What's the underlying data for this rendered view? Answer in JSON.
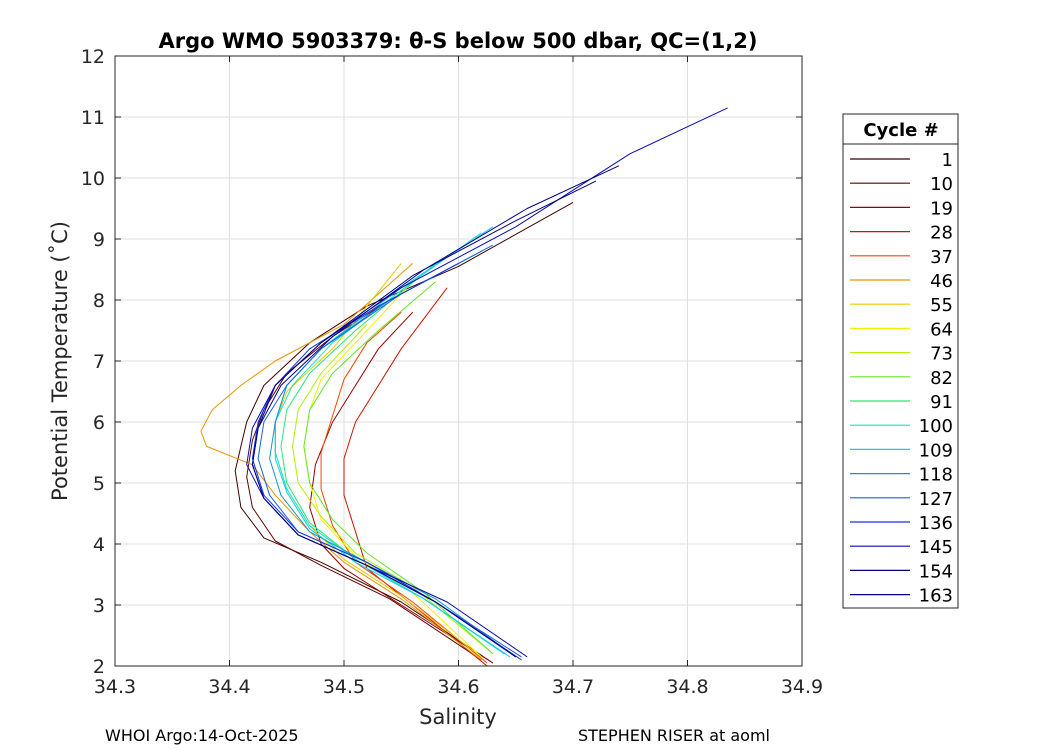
{
  "chart_data": {
    "type": "line",
    "title": "Argo WMO 5903379: θ-S below 500 dbar,  QC=(1,2)",
    "xlabel": "Salinity",
    "ylabel": "Potential Temperature (˚C)",
    "xlim": [
      34.3,
      34.9
    ],
    "ylim": [
      2,
      12
    ],
    "xticks": [
      "34.3",
      "34.4",
      "34.5",
      "34.6",
      "34.7",
      "34.8",
      "34.9"
    ],
    "yticks": [
      "2",
      "3",
      "4",
      "5",
      "6",
      "7",
      "8",
      "9",
      "10",
      "11",
      "12"
    ],
    "grid": true,
    "legend": {
      "title": "Cycle #",
      "placement": "right",
      "entries": [
        {
          "label": "1",
          "color": "#3c0000"
        },
        {
          "label": "10",
          "color": "#640000"
        },
        {
          "label": "19",
          "color": "#960000"
        },
        {
          "label": "28",
          "color": "#c81400"
        },
        {
          "label": "37",
          "color": "#f04600"
        },
        {
          "label": "46",
          "color": "#e69600"
        },
        {
          "label": "55",
          "color": "#ebc800"
        },
        {
          "label": "64",
          "color": "#f5f000"
        },
        {
          "label": "73",
          "color": "#b4f000"
        },
        {
          "label": "82",
          "color": "#64e628"
        },
        {
          "label": "91",
          "color": "#28e678"
        },
        {
          "label": "100",
          "color": "#14e6c8"
        },
        {
          "label": "109",
          "color": "#14c8f0"
        },
        {
          "label": "118",
          "color": "#1496c8"
        },
        {
          "label": "127",
          "color": "#1464dc"
        },
        {
          "label": "136",
          "color": "#1432e6"
        },
        {
          "label": "145",
          "color": "#0a0ab4"
        },
        {
          "label": "154",
          "color": "#000078"
        },
        {
          "label": "163",
          "color": "#00008c"
        }
      ]
    },
    "series": [
      {
        "name": "1",
        "color": "#3c0000",
        "points": [
          [
            34.63,
            2.05
          ],
          [
            34.55,
            3.05
          ],
          [
            34.48,
            3.7
          ],
          [
            34.43,
            4.1
          ],
          [
            34.41,
            4.6
          ],
          [
            34.405,
            5.2
          ],
          [
            34.41,
            5.6
          ],
          [
            34.415,
            6.0
          ],
          [
            34.43,
            6.6
          ],
          [
            34.47,
            7.3
          ],
          [
            34.52,
            7.9
          ],
          [
            34.6,
            8.55
          ],
          [
            34.7,
            9.6
          ]
        ]
      },
      {
        "name": "10",
        "color": "#640000",
        "points": [
          [
            34.62,
            2.1
          ],
          [
            34.54,
            3.1
          ],
          [
            34.48,
            3.65
          ],
          [
            34.44,
            4.05
          ],
          [
            34.42,
            4.6
          ],
          [
            34.415,
            5.1
          ],
          [
            34.42,
            5.7
          ],
          [
            34.43,
            6.2
          ],
          [
            34.45,
            6.8
          ],
          [
            34.49,
            7.4
          ],
          [
            34.54,
            8.0
          ]
        ]
      },
      {
        "name": "19",
        "color": "#960000",
        "points": [
          [
            34.63,
            2.05
          ],
          [
            34.55,
            3.0
          ],
          [
            34.5,
            3.6
          ],
          [
            34.48,
            4.0
          ],
          [
            34.47,
            4.6
          ],
          [
            34.475,
            5.3
          ],
          [
            34.49,
            6.0
          ],
          [
            34.51,
            6.6
          ],
          [
            34.53,
            7.2
          ],
          [
            34.56,
            7.8
          ]
        ]
      },
      {
        "name": "28",
        "color": "#c81400",
        "points": [
          [
            34.625,
            2.0
          ],
          [
            34.56,
            3.0
          ],
          [
            34.52,
            3.6
          ],
          [
            34.51,
            4.2
          ],
          [
            34.5,
            4.8
          ],
          [
            34.5,
            5.4
          ],
          [
            34.51,
            6.0
          ],
          [
            34.53,
            6.6
          ],
          [
            34.55,
            7.2
          ],
          [
            34.59,
            8.2
          ]
        ]
      },
      {
        "name": "37",
        "color": "#f04600",
        "points": [
          [
            34.625,
            2.05
          ],
          [
            34.56,
            3.05
          ],
          [
            34.51,
            3.7
          ],
          [
            34.49,
            4.3
          ],
          [
            34.48,
            4.9
          ],
          [
            34.48,
            5.5
          ],
          [
            34.49,
            6.1
          ],
          [
            34.5,
            6.7
          ],
          [
            34.52,
            7.3
          ],
          [
            34.55,
            7.8
          ]
        ]
      },
      {
        "name": "46",
        "color": "#e69600",
        "points": [
          [
            34.62,
            2.1
          ],
          [
            34.55,
            3.1
          ],
          [
            34.5,
            3.7
          ],
          [
            34.47,
            4.2
          ],
          [
            34.44,
            4.8
          ],
          [
            34.42,
            5.3
          ],
          [
            34.38,
            5.6
          ],
          [
            34.375,
            5.85
          ],
          [
            34.385,
            6.2
          ],
          [
            34.41,
            6.6
          ],
          [
            34.44,
            7.0
          ],
          [
            34.5,
            7.6
          ],
          [
            34.56,
            8.6
          ]
        ]
      },
      {
        "name": "55",
        "color": "#ebc800",
        "points": [
          [
            34.62,
            2.15
          ],
          [
            34.55,
            3.15
          ],
          [
            34.5,
            3.75
          ],
          [
            34.47,
            4.3
          ],
          [
            34.45,
            4.9
          ],
          [
            34.44,
            5.5
          ],
          [
            34.44,
            6.0
          ],
          [
            34.45,
            6.5
          ],
          [
            34.49,
            7.2
          ],
          [
            34.55,
            8.6
          ]
        ]
      },
      {
        "name": "64",
        "color": "#f5f000",
        "points": [
          [
            34.62,
            2.15
          ],
          [
            34.56,
            3.2
          ],
          [
            34.51,
            3.8
          ],
          [
            34.48,
            4.4
          ],
          [
            34.47,
            5.0
          ],
          [
            34.465,
            5.6
          ],
          [
            34.47,
            6.2
          ],
          [
            34.48,
            6.7
          ],
          [
            34.51,
            7.3
          ],
          [
            34.56,
            8.3
          ]
        ]
      },
      {
        "name": "73",
        "color": "#b4f000",
        "points": [
          [
            34.63,
            2.2
          ],
          [
            34.56,
            3.3
          ],
          [
            34.51,
            3.85
          ],
          [
            34.48,
            4.45
          ],
          [
            34.46,
            5.0
          ],
          [
            34.455,
            5.6
          ],
          [
            34.46,
            6.2
          ],
          [
            34.48,
            6.8
          ],
          [
            34.52,
            7.6
          ]
        ]
      },
      {
        "name": "82",
        "color": "#64e628",
        "points": [
          [
            34.63,
            2.2
          ],
          [
            34.57,
            3.2
          ],
          [
            34.52,
            3.85
          ],
          [
            34.49,
            4.4
          ],
          [
            34.47,
            5.0
          ],
          [
            34.465,
            5.6
          ],
          [
            34.47,
            6.2
          ],
          [
            34.49,
            6.8
          ],
          [
            34.53,
            7.5
          ],
          [
            34.58,
            8.3
          ]
        ]
      },
      {
        "name": "91",
        "color": "#28e678",
        "points": [
          [
            34.64,
            2.2
          ],
          [
            34.57,
            3.1
          ],
          [
            34.51,
            3.75
          ],
          [
            34.47,
            4.35
          ],
          [
            34.45,
            5.0
          ],
          [
            34.445,
            5.6
          ],
          [
            34.45,
            6.2
          ],
          [
            34.47,
            6.8
          ],
          [
            34.51,
            7.5
          ],
          [
            34.58,
            8.6
          ]
        ]
      },
      {
        "name": "100",
        "color": "#14e6c8",
        "points": [
          [
            34.64,
            2.2
          ],
          [
            34.57,
            3.1
          ],
          [
            34.51,
            3.75
          ],
          [
            34.47,
            4.3
          ],
          [
            34.45,
            4.9
          ],
          [
            34.44,
            5.5
          ],
          [
            34.44,
            6.0
          ],
          [
            34.455,
            6.6
          ],
          [
            34.49,
            7.3
          ],
          [
            34.56,
            8.3
          ],
          [
            34.62,
            9.1
          ]
        ]
      },
      {
        "name": "109",
        "color": "#14c8f0",
        "points": [
          [
            34.645,
            2.15
          ],
          [
            34.57,
            3.1
          ],
          [
            34.51,
            3.7
          ],
          [
            34.47,
            4.25
          ],
          [
            34.45,
            4.85
          ],
          [
            34.44,
            5.4
          ],
          [
            34.44,
            6.0
          ],
          [
            34.45,
            6.6
          ],
          [
            34.48,
            7.2
          ],
          [
            34.55,
            8.2
          ],
          [
            34.63,
            9.2
          ]
        ]
      },
      {
        "name": "118",
        "color": "#1496c8",
        "points": [
          [
            34.65,
            2.15
          ],
          [
            34.58,
            3.1
          ],
          [
            34.52,
            3.7
          ],
          [
            34.47,
            4.2
          ],
          [
            34.445,
            4.8
          ],
          [
            34.435,
            5.4
          ],
          [
            34.44,
            6.0
          ],
          [
            34.45,
            6.6
          ],
          [
            34.48,
            7.2
          ],
          [
            34.54,
            8.0
          ],
          [
            34.62,
            8.8
          ]
        ]
      },
      {
        "name": "127",
        "color": "#1464dc",
        "points": [
          [
            34.655,
            2.15
          ],
          [
            34.58,
            3.05
          ],
          [
            34.52,
            3.7
          ],
          [
            34.46,
            4.2
          ],
          [
            34.435,
            4.8
          ],
          [
            34.425,
            5.4
          ],
          [
            34.43,
            6.0
          ],
          [
            34.45,
            6.6
          ],
          [
            34.48,
            7.2
          ],
          [
            34.55,
            8.1
          ],
          [
            34.63,
            8.9
          ]
        ]
      },
      {
        "name": "136",
        "color": "#1432e6",
        "points": [
          [
            34.655,
            2.1
          ],
          [
            34.58,
            3.05
          ],
          [
            34.52,
            3.7
          ],
          [
            34.46,
            4.2
          ],
          [
            34.43,
            4.8
          ],
          [
            34.42,
            5.4
          ],
          [
            34.425,
            6.0
          ],
          [
            34.44,
            6.6
          ],
          [
            34.47,
            7.2
          ],
          [
            34.53,
            7.9
          ],
          [
            34.6,
            8.6
          ]
        ]
      },
      {
        "name": "145",
        "color": "#0a0ab4",
        "points": [
          [
            34.66,
            2.15
          ],
          [
            34.59,
            3.05
          ],
          [
            34.52,
            3.65
          ],
          [
            34.46,
            4.15
          ],
          [
            34.43,
            4.75
          ],
          [
            34.415,
            5.3
          ],
          [
            34.42,
            5.9
          ],
          [
            34.44,
            6.6
          ],
          [
            34.48,
            7.3
          ],
          [
            34.55,
            8.2
          ],
          [
            34.65,
            9.2
          ],
          [
            34.75,
            10.4
          ],
          [
            34.835,
            11.15
          ]
        ]
      },
      {
        "name": "154",
        "color": "#000078",
        "points": [
          [
            34.65,
            2.15
          ],
          [
            34.58,
            3.05
          ],
          [
            34.52,
            3.65
          ],
          [
            34.46,
            4.15
          ],
          [
            34.43,
            4.75
          ],
          [
            34.42,
            5.3
          ],
          [
            34.425,
            5.9
          ],
          [
            34.44,
            6.6
          ],
          [
            34.48,
            7.3
          ],
          [
            34.56,
            8.4
          ],
          [
            34.65,
            9.3
          ],
          [
            34.72,
            9.95
          ]
        ]
      },
      {
        "name": "163",
        "color": "#00008c",
        "points": [
          [
            34.65,
            2.15
          ],
          [
            34.58,
            3.05
          ],
          [
            34.52,
            3.65
          ],
          [
            34.46,
            4.15
          ],
          [
            34.43,
            4.75
          ],
          [
            34.42,
            5.3
          ],
          [
            34.425,
            5.9
          ],
          [
            34.445,
            6.6
          ],
          [
            34.49,
            7.4
          ],
          [
            34.57,
            8.5
          ],
          [
            34.66,
            9.5
          ],
          [
            34.74,
            10.2
          ]
        ]
      }
    ]
  },
  "footer": {
    "left": "WHOI Argo:14-Oct-2025",
    "right": "STEPHEN RISER at aoml"
  }
}
